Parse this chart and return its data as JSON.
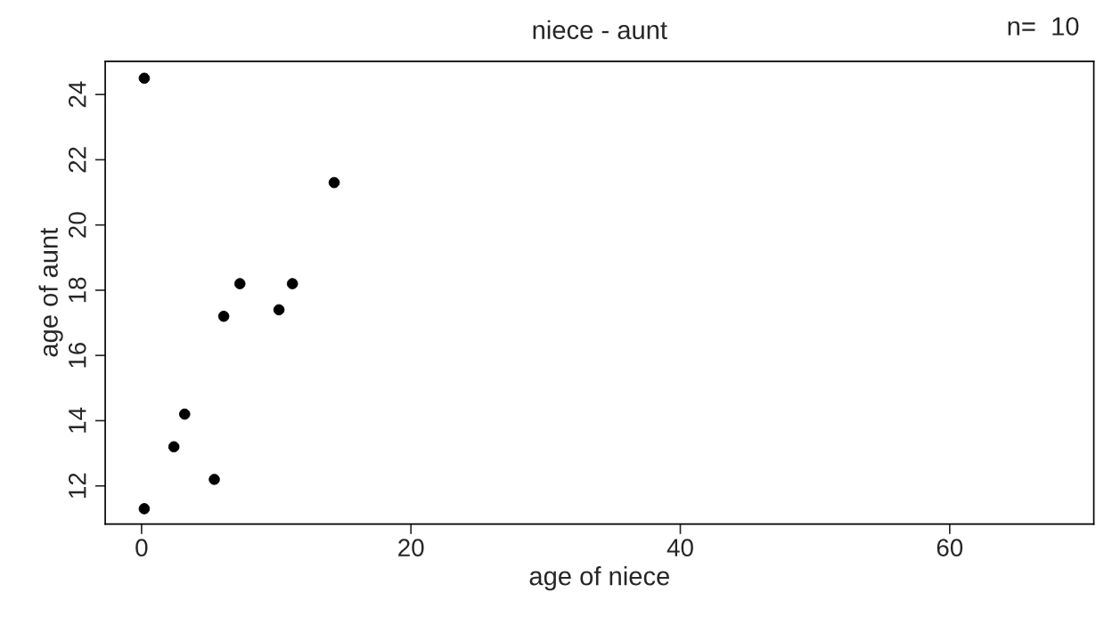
{
  "chart_data": {
    "type": "scatter",
    "title": "niece - aunt",
    "annotations": [
      "n=  10"
    ],
    "xlabel": "age of niece",
    "ylabel": "age of aunt",
    "x": [
      0.2,
      14.3,
      7.3,
      11.2,
      6.1,
      10.2,
      3.2,
      2.4,
      5.4,
      0.2
    ],
    "values": [
      24.5,
      21.3,
      18.2,
      18.2,
      17.2,
      17.4,
      14.2,
      13.2,
      12.2,
      11.3
    ],
    "color": "#000000",
    "marker": "circle",
    "grid": false,
    "xlim": [
      -2.7,
      70.7
    ],
    "xticks": [
      0,
      20,
      40,
      60
    ],
    "ylim": [
      10.83,
      25.02
    ],
    "yticks": [
      12,
      14,
      16,
      18,
      20,
      22,
      24
    ]
  }
}
